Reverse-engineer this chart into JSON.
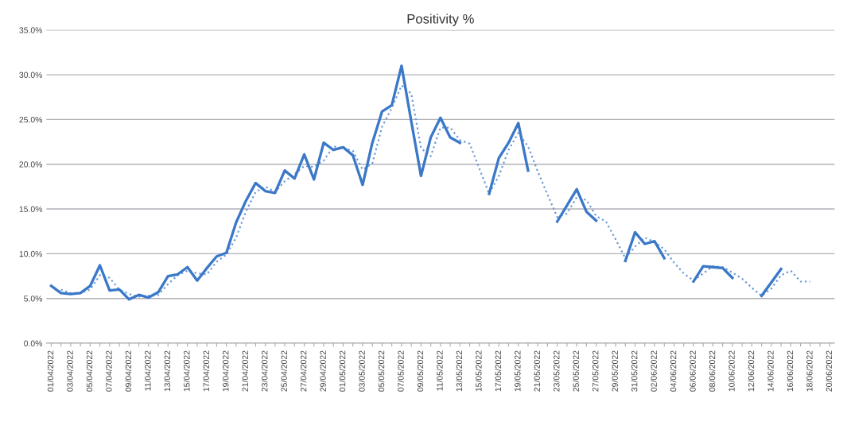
{
  "chart_data": {
    "type": "line",
    "title": "Positivity %",
    "categories": [
      "01/04/2022",
      null,
      "03/04/2022",
      null,
      "05/04/2022",
      null,
      "07/04/2022",
      null,
      "09/04/2022",
      null,
      "11/04/2022",
      null,
      "13/04/2022",
      null,
      "15/04/2022",
      null,
      "17/04/2022",
      null,
      "19/04/2022",
      null,
      "21/04/2022",
      null,
      "23/04/2022",
      null,
      "25/04/2022",
      null,
      "27/04/2022",
      null,
      "29/04/2022",
      null,
      "01/05/2022",
      null,
      "03/05/2022",
      null,
      "05/05/2022",
      null,
      "07/05/2022",
      null,
      "09/05/2022",
      null,
      "11/05/2022",
      null,
      "13/05/2022",
      null,
      "15/05/2022",
      null,
      "17/05/2022",
      null,
      "19/05/2022",
      null,
      "21/05/2022",
      null,
      "23/05/2022",
      null,
      "25/05/2022",
      null,
      "27/05/2022",
      null,
      "29/05/2022",
      null,
      "31/05/2022",
      null,
      "02/06/2022",
      null,
      "04/06/2022",
      null,
      "06/06/2022",
      null,
      "08/06/2022",
      null,
      "10/06/2022",
      null,
      "12/06/2022",
      null,
      "14/06/2022",
      null,
      "16/06/2022",
      null,
      "18/06/2022",
      null,
      "20/06/2022"
    ],
    "series": [
      {
        "color": "#3b78c8",
        "line_style": "solid",
        "values": [
          6.4,
          5.6,
          5.5,
          5.6,
          6.4,
          8.7,
          5.9,
          6.0,
          4.9,
          5.4,
          5.1,
          5.7,
          7.5,
          7.7,
          8.5,
          7.0,
          8.4,
          9.7,
          10.1,
          13.5,
          15.9,
          17.9,
          17.0,
          16.8,
          19.3,
          18.4,
          21.1,
          18.3,
          22.4,
          21.6,
          21.9,
          21.0,
          17.7,
          22.4,
          25.9,
          26.6,
          31.0,
          24.8,
          18.7,
          23.0,
          25.2,
          23.0,
          22.4,
          null,
          null,
          16.7,
          20.7,
          22.4,
          24.6,
          19.3,
          null,
          null,
          13.6,
          15.4,
          17.2,
          14.7,
          13.7,
          null,
          null,
          9.2,
          12.4,
          11.1,
          11.4,
          9.5,
          null,
          null,
          6.9,
          8.6,
          8.5,
          8.4,
          7.3,
          null,
          null,
          5.3,
          6.8,
          8.3,
          null,
          null,
          null,
          null,
          null
        ]
      },
      {
        "color": "#6b9ad6",
        "line_style": "dotted",
        "values": [
          null,
          6.0,
          5.6,
          5.6,
          6.0,
          7.6,
          7.3,
          6.0,
          5.5,
          5.2,
          5.3,
          5.4,
          6.6,
          7.6,
          8.1,
          7.8,
          7.7,
          9.1,
          9.9,
          11.8,
          14.7,
          16.9,
          17.5,
          16.9,
          18.1,
          18.9,
          19.8,
          19.7,
          20.4,
          22.0,
          21.8,
          21.5,
          19.4,
          20.1,
          24.2,
          26.3,
          28.8,
          27.9,
          21.8,
          20.9,
          24.1,
          24.1,
          22.7,
          22.3,
          19.5,
          16.7,
          18.7,
          21.6,
          23.5,
          22.0,
          19.2,
          16.6,
          14.1,
          14.5,
          16.3,
          16.0,
          14.2,
          13.6,
          11.6,
          9.5,
          10.8,
          11.8,
          11.3,
          10.5,
          9.0,
          7.8,
          7.0,
          7.8,
          8.6,
          8.5,
          7.9,
          7.2,
          6.2,
          5.3,
          6.1,
          7.6,
          8.1,
          6.9,
          6.9,
          null,
          null
        ]
      }
    ],
    "ylim": [
      0,
      35
    ],
    "yticks": [
      {
        "value": 0,
        "label": "0.0%"
      },
      {
        "value": 5,
        "label": "5.0%"
      },
      {
        "value": 10,
        "label": "10.0%"
      },
      {
        "value": 15,
        "label": "15.0%"
      },
      {
        "value": 20,
        "label": "20.0%"
      },
      {
        "value": 25,
        "label": "25.0%"
      },
      {
        "value": 30,
        "label": "30.0%"
      },
      {
        "value": 35,
        "label": "35.0%"
      }
    ],
    "grid": "y",
    "marker": "none",
    "legend": false
  }
}
